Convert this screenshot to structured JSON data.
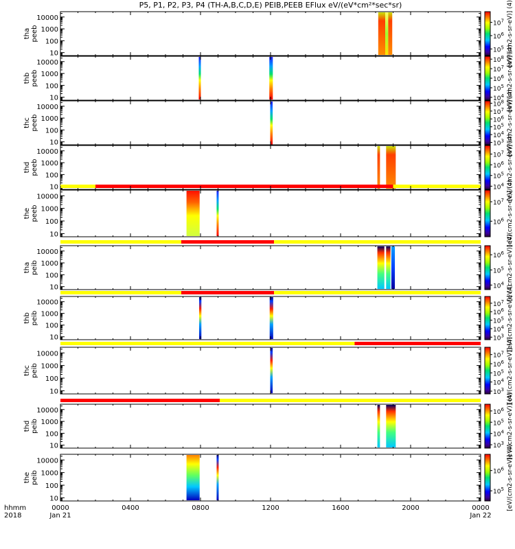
{
  "title": "P5, P1, P2, P3, P4 (TH-A,B,C,D,E) PEIB,PEEB EFlux eV/(eV*cm²*sec*sr)",
  "colorbar_label": "[eV/(cm2-s-sr-eV)] (4)",
  "x_axis": {
    "ticks": [
      "0000",
      "0400",
      "0800",
      "1200",
      "1600",
      "2000",
      "0000"
    ],
    "date_start": "Jan 21",
    "date_end": "Jan 22",
    "corner_top": "hhmm",
    "corner_bottom": "2018",
    "range_hours": [
      0,
      24
    ]
  },
  "colors": {
    "sample_flag_slow": "#ffff00",
    "sample_flag_fast": "#ff0000"
  },
  "chart_data": {
    "type": "heatmap",
    "x_unit": "hours since 2018-01-21 00:00",
    "y_scale": "log",
    "y_ticks": [
      "10000",
      "1000",
      "100",
      "10"
    ],
    "panels": [
      {
        "id": "tha_peeb",
        "label": [
          "tha",
          "peeb"
        ],
        "cb_ticks": [
          "10^7",
          "10^6",
          "10^5"
        ],
        "cb_range": [
          4.5,
          7.8
        ],
        "blocks": [
          {
            "t0": 18.15,
            "t1": 18.55,
            "mode": "high"
          },
          {
            "t0": 18.55,
            "t1": 18.72,
            "mode": "mid"
          },
          {
            "t0": 18.72,
            "t1": 18.95,
            "mode": "high"
          }
        ],
        "flag": null
      },
      {
        "id": "thb_peeb",
        "label": [
          "thb",
          "peeb"
        ],
        "cb_ticks": [
          "10^8",
          "10^7",
          "10^6",
          "10^5",
          "10^4"
        ],
        "cb_range": [
          3.7,
          8.3
        ],
        "blocks": [
          {
            "t0": 7.9,
            "t1": 8.02,
            "mode": "spike"
          },
          {
            "t0": 11.93,
            "t1": 12.13,
            "mode": "spike"
          }
        ],
        "flag": null
      },
      {
        "id": "thc_peeb",
        "label": [
          "thc",
          "peeb"
        ],
        "cb_ticks": [
          "10^8",
          "10^7",
          "10^6",
          "10^5",
          "10^4",
          "10^3"
        ],
        "cb_range": [
          2.7,
          8.3
        ],
        "blocks": [
          {
            "t0": 11.98,
            "t1": 12.12,
            "mode": "spike"
          }
        ],
        "flag": null
      },
      {
        "id": "thd_peeb",
        "label": [
          "thd",
          "peeb"
        ],
        "cb_ticks": [
          "10^7",
          "10^6",
          "10^5",
          "10^4"
        ],
        "cb_range": [
          3.7,
          7.8
        ],
        "blocks": [
          {
            "t0": 18.1,
            "t1": 18.25,
            "mode": "high"
          },
          {
            "t0": 18.6,
            "t1": 19.15,
            "mode": "high"
          }
        ],
        "flag": null
      },
      {
        "id": "the_peeb",
        "label": [
          "the",
          "peeb"
        ],
        "cb_ticks": [
          "10^7",
          "10^6"
        ],
        "cb_range": [
          5.2,
          7.6
        ],
        "blocks": [
          {
            "t0": 7.2,
            "t1": 7.95,
            "mode": "broad"
          },
          {
            "t0": 8.92,
            "t1": 9.02,
            "mode": "spike"
          }
        ],
        "flag": {
          "segments": [
            {
              "t0": 0,
              "t1": 2.0,
              "mode": "slow"
            },
            {
              "t0": 2.0,
              "t1": 19.0,
              "mode": "fast"
            },
            {
              "t0": 19.0,
              "t1": 24,
              "mode": "slow"
            }
          ]
        }
      },
      {
        "id": "tha_peib",
        "label": [
          "tha",
          "peib"
        ],
        "cb_ticks": [
          "10^6",
          "10^5",
          "10^4"
        ],
        "cb_range": [
          3.7,
          6.6
        ],
        "blocks": [
          {
            "t0": 18.1,
            "t1": 18.5,
            "mode": "ion"
          },
          {
            "t0": 18.6,
            "t1": 18.85,
            "mode": "ion"
          },
          {
            "t0": 18.9,
            "t1": 19.1,
            "mode": "iondark"
          }
        ],
        "flag": {
          "segments": [
            {
              "t0": 0,
              "t1": 6.9,
              "mode": "slow"
            },
            {
              "t0": 6.9,
              "t1": 12.2,
              "mode": "fast"
            },
            {
              "t0": 12.2,
              "t1": 24,
              "mode": "slow"
            }
          ]
        }
      },
      {
        "id": "thb_peib",
        "label": [
          "thb",
          "peib"
        ],
        "cb_ticks": [
          "10^7",
          "10^6",
          "10^5",
          "10^4",
          "10^3"
        ],
        "cb_range": [
          2.7,
          7.8
        ],
        "blocks": [
          {
            "t0": 7.92,
            "t1": 8.05,
            "mode": "ionspike"
          },
          {
            "t0": 11.95,
            "t1": 12.15,
            "mode": "ionspike"
          }
        ],
        "flag": {
          "segments": [
            {
              "t0": 0,
              "t1": 6.9,
              "mode": "slow"
            },
            {
              "t0": 6.9,
              "t1": 12.2,
              "mode": "fast"
            },
            {
              "t0": 12.2,
              "t1": 24,
              "mode": "slow"
            }
          ]
        }
      },
      {
        "id": "thc_peib",
        "label": [
          "thc",
          "peib"
        ],
        "cb_ticks": [
          "10^7",
          "10^6",
          "10^5",
          "10^4",
          "10^3"
        ],
        "cb_range": [
          2.7,
          7.8
        ],
        "blocks": [
          {
            "t0": 11.98,
            "t1": 12.12,
            "mode": "ionspike"
          }
        ],
        "flag": {
          "segments": [
            {
              "t0": 0,
              "t1": 16.8,
              "mode": "slow"
            },
            {
              "t0": 16.8,
              "t1": 24,
              "mode": "fast"
            }
          ]
        }
      },
      {
        "id": "thd_peib",
        "label": [
          "thd",
          "peib"
        ],
        "cb_ticks": [
          "10^6",
          "10^5",
          "10^4",
          "10^3"
        ],
        "cb_range": [
          2.7,
          6.6
        ],
        "blocks": [
          {
            "t0": 18.1,
            "t1": 18.25,
            "mode": "ion"
          },
          {
            "t0": 18.6,
            "t1": 19.15,
            "mode": "ion"
          }
        ],
        "flag": {
          "segments": [
            {
              "t0": 0,
              "t1": 9.1,
              "mode": "fast"
            },
            {
              "t0": 9.1,
              "t1": 24,
              "mode": "slow"
            }
          ]
        }
      },
      {
        "id": "the_peib",
        "label": [
          "the",
          "peib"
        ],
        "cb_ticks": [
          "10^6",
          "10^5"
        ],
        "cb_range": [
          4.5,
          6.8
        ],
        "blocks": [
          {
            "t0": 7.2,
            "t1": 7.95,
            "mode": "ionbroad"
          },
          {
            "t0": 8.92,
            "t1": 9.02,
            "mode": "ionspike"
          }
        ],
        "flag": null
      }
    ]
  }
}
